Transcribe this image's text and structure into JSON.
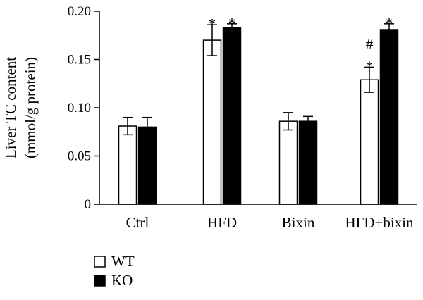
{
  "chart_data": {
    "type": "bar",
    "ylabel_lines": [
      "Liver TC content",
      "(mmol/g protein)"
    ],
    "ylim": [
      0,
      0.2
    ],
    "yticks": [
      {
        "value": 0,
        "label": "0"
      },
      {
        "value": 0.05,
        "label": "0.05"
      },
      {
        "value": 0.1,
        "label": "0.10"
      },
      {
        "value": 0.15,
        "label": "0.15"
      },
      {
        "value": 0.2,
        "label": "0.20"
      }
    ],
    "categories": [
      "Ctrl",
      "HFD",
      "Bixin",
      "HFD+bixin"
    ],
    "series": [
      {
        "name": "WT",
        "color": "#ffffff",
        "values": [
          0.081,
          0.17,
          0.086,
          0.129
        ],
        "errors": [
          0.009,
          0.016,
          0.009,
          0.013
        ],
        "annotations": [
          [],
          [
            "*"
          ],
          [],
          [
            "*",
            "#"
          ]
        ]
      },
      {
        "name": "KO",
        "color": "#000000",
        "values": [
          0.08,
          0.183,
          0.086,
          0.181
        ],
        "errors": [
          0.01,
          0.004,
          0.005,
          0.006
        ],
        "annotations": [
          [],
          [
            "*"
          ],
          [],
          [
            "*"
          ]
        ]
      }
    ],
    "grid": false,
    "legend_position": "bottom-left"
  }
}
